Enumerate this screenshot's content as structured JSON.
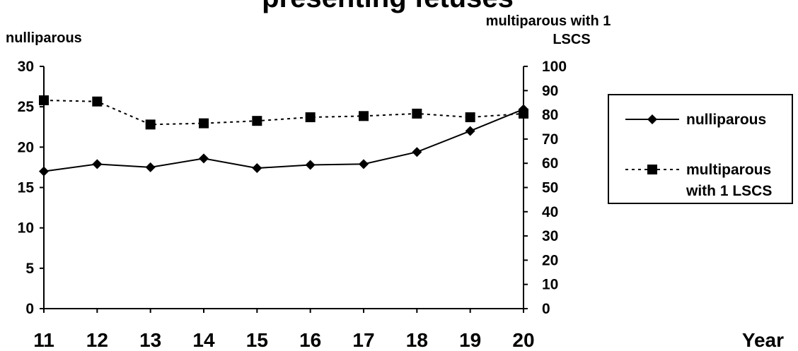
{
  "chart_data": {
    "type": "line",
    "title": "presenting fetuses",
    "xlabel": "Year",
    "ylabel_left": "nulliparous",
    "ylabel_right_line1": "multiparous with 1",
    "ylabel_right_line2": "LSCS",
    "categories": [
      "11",
      "12",
      "13",
      "14",
      "15",
      "16",
      "17",
      "18",
      "19",
      "20"
    ],
    "y_left": {
      "min": 0,
      "max": 30,
      "ticks": [
        "0",
        "5",
        "10",
        "15",
        "20",
        "25",
        "30"
      ]
    },
    "y_right": {
      "min": 0,
      "max": 100,
      "ticks": [
        "0",
        "10",
        "20",
        "30",
        "40",
        "50",
        "60",
        "70",
        "80",
        "90",
        "100"
      ]
    },
    "grid": false,
    "legend_position": "right",
    "series": [
      {
        "name": "nulliparous",
        "axis": "left",
        "marker": "diamond",
        "line_style": "solid",
        "values": [
          17.0,
          17.9,
          17.5,
          18.6,
          17.4,
          17.8,
          17.9,
          19.4,
          22.0,
          24.7
        ]
      },
      {
        "name_line1": "multiparous",
        "name_line2": "with 1 LSCS",
        "axis": "right",
        "marker": "square",
        "line_style": "dotted",
        "values": [
          86,
          85.5,
          76,
          76.5,
          77.5,
          79,
          79.5,
          80.5,
          79,
          80.5
        ]
      }
    ],
    "colors": {
      "line": "#000000",
      "background": "#ffffff"
    }
  }
}
